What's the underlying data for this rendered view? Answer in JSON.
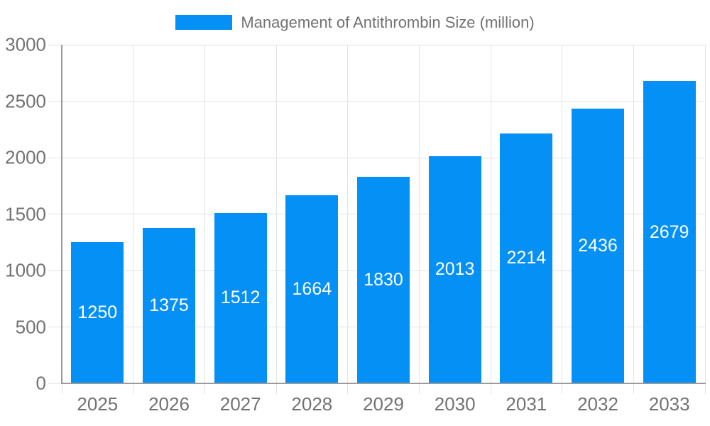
{
  "colors": {
    "bar": "#0590F5",
    "grid": "#E3E3E3",
    "axis": "#9A9A9A",
    "text": "#727272",
    "bar_label": "#FFFFFF"
  },
  "chart_data": {
    "type": "bar",
    "title": "Management of Antithrombin Size (million)",
    "categories": [
      "2025",
      "2026",
      "2027",
      "2028",
      "2029",
      "2030",
      "2031",
      "2032",
      "2033"
    ],
    "values": [
      1250,
      1375,
      1512,
      1664,
      1830,
      2013,
      2214,
      2436,
      2679
    ],
    "xlabel": "",
    "ylabel": "",
    "ylim": [
      0,
      3000
    ],
    "yticks": [
      0,
      500,
      1000,
      1500,
      2000,
      2500,
      3000
    ],
    "grid": true,
    "legend_position": "top",
    "bar_value_labels": "centered-inside-white"
  }
}
